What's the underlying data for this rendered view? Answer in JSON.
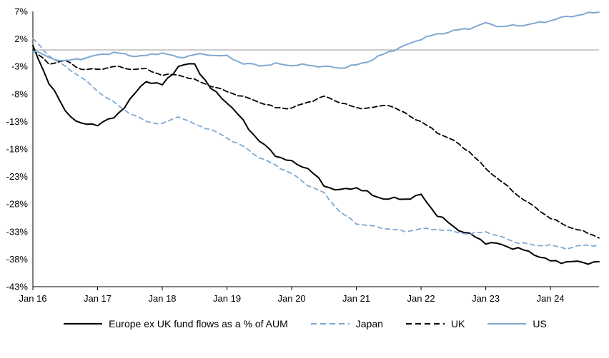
{
  "chart_data": {
    "type": "line",
    "title": "",
    "xlabel": "",
    "ylabel": "",
    "x_unit": "months_since_jan_2016",
    "x_step_months": 3,
    "x_end_month": 105,
    "ylim": [
      -43,
      7
    ],
    "zero_line": 0,
    "grid": "zero-line-only",
    "legend_position": "bottom",
    "yticks": {
      "values": [
        7,
        2,
        -3,
        -8,
        -13,
        -18,
        -23,
        -28,
        -33,
        -38,
        -43
      ],
      "labels": [
        "7%",
        "2%",
        "-3%",
        "-8%",
        "-13%",
        "-18%",
        "-23%",
        "-28%",
        "-33%",
        "-38%",
        "-43%"
      ]
    },
    "xticks": {
      "months": [
        0,
        12,
        24,
        36,
        48,
        60,
        72,
        84,
        96
      ],
      "labels": [
        "Jan 16",
        "Jan 17",
        "Jan 18",
        "Jan 19",
        "Jan 20",
        "Jan 21",
        "Jan 22",
        "Jan 23",
        "Jan 24"
      ]
    },
    "colors": {
      "black": "#000000",
      "blue": "#7FA8D2",
      "zero_line": "#9a9a9a",
      "axis": "#000000"
    },
    "series": [
      {
        "name": "Europe ex UK fund flows as a % of AUM",
        "color": "#000000",
        "style": "solid",
        "dash": "",
        "width": 2,
        "jitter": 0.45,
        "values": [
          0.5,
          -6,
          -11,
          -13.5,
          -13.5,
          -12.5,
          -9,
          -5.5,
          -6.5,
          -3,
          -2.5,
          -7,
          -9.5,
          -13,
          -16.5,
          -19,
          -20.5,
          -21.5,
          -24.5,
          -25.5,
          -25,
          -26.5,
          -27,
          -27,
          -26.5,
          -30,
          -32,
          -33.5,
          -35,
          -35.5,
          -36,
          -37,
          -38.5,
          -38.5,
          -38.5,
          -38.5
        ]
      },
      {
        "name": "Japan",
        "color": "#7FA8D2",
        "style": "dashed",
        "dash": "6 5",
        "width": 1.8,
        "jitter": 0.22,
        "values": [
          2,
          -1,
          -3,
          -5,
          -7.5,
          -9.5,
          -11.5,
          -13,
          -13.5,
          -12,
          -13.5,
          -14.5,
          -16,
          -17.5,
          -19.5,
          -21,
          -22.5,
          -24.5,
          -26,
          -29.5,
          -31.5,
          -32,
          -32.5,
          -33,
          -32.5,
          -32.5,
          -33,
          -33.5,
          -33,
          -34,
          -35,
          -35.5,
          -35.5,
          -36,
          -35.5,
          -35.5
        ]
      },
      {
        "name": "UK",
        "color": "#000000",
        "style": "dashed",
        "dash": "7 4",
        "width": 1.8,
        "jitter": 0.22,
        "values": [
          0,
          -2.5,
          -2,
          -3.5,
          -3.5,
          -3,
          -3.5,
          -3.5,
          -4.5,
          -4.5,
          -5.5,
          -6.5,
          -7.5,
          -8.5,
          -9.5,
          -10.5,
          -10.5,
          -9.5,
          -8.5,
          -9.5,
          -10.5,
          -10.5,
          -10,
          -11.5,
          -13,
          -15,
          -16.5,
          -18.5,
          -21.5,
          -24,
          -26.5,
          -28.5,
          -30.5,
          -32,
          -33,
          -34
        ]
      },
      {
        "name": "US",
        "color": "#7FA8D2",
        "style": "solid",
        "dash": "",
        "width": 2,
        "jitter": 0.28,
        "values": [
          0,
          -1.5,
          -2,
          -1.5,
          -1,
          -0.5,
          -1,
          -1,
          -0.5,
          -1.5,
          -0.8,
          -0.8,
          -1.2,
          -2.5,
          -2.8,
          -2.5,
          -2.8,
          -2.8,
          -3,
          -3.2,
          -2.8,
          -1.8,
          -0.3,
          0.8,
          2,
          2.8,
          3.5,
          4,
          4.8,
          4.2,
          4.5,
          4.8,
          5.3,
          6,
          6.5,
          7
        ]
      }
    ]
  }
}
